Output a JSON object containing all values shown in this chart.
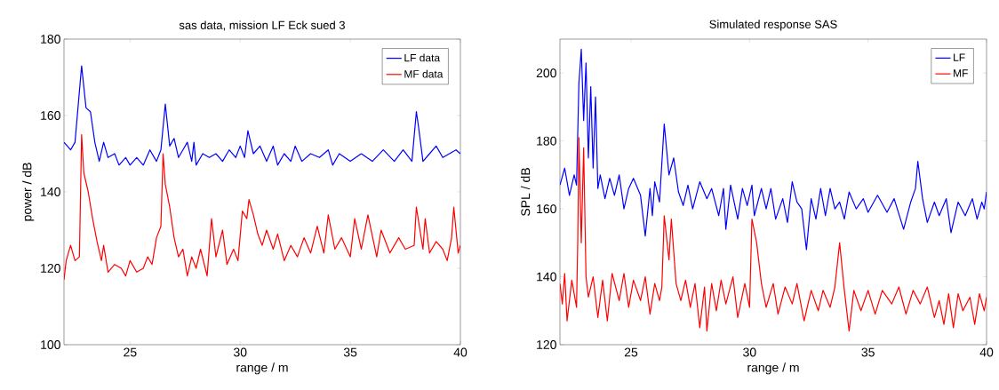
{
  "chart_data": [
    {
      "type": "line",
      "title": "sas data, mission LF Eck sued 3",
      "xlabel": "range / m",
      "ylabel": "power / dB",
      "xlim": [
        22,
        40
      ],
      "ylim": [
        100,
        180
      ],
      "xticks": [
        25,
        30,
        35,
        40
      ],
      "yticks": [
        100,
        120,
        140,
        160,
        180
      ],
      "legend": "top right",
      "series": [
        {
          "name": "LF data",
          "color": "#0000ff",
          "x": [
            22.0,
            22.3,
            22.5,
            22.8,
            23.0,
            23.2,
            23.4,
            23.6,
            23.8,
            24.0,
            24.3,
            24.5,
            24.8,
            25.0,
            25.3,
            25.6,
            25.9,
            26.2,
            26.4,
            26.6,
            26.8,
            27.0,
            27.2,
            27.4,
            27.6,
            27.8,
            27.9,
            28.0,
            28.3,
            28.6,
            28.9,
            29.2,
            29.5,
            29.8,
            30.0,
            30.2,
            30.35,
            30.6,
            30.9,
            31.2,
            31.5,
            31.7,
            32.0,
            32.3,
            32.5,
            32.8,
            33.2,
            33.6,
            34.0,
            34.2,
            34.5,
            35.0,
            35.5,
            36.0,
            36.5,
            37.0,
            37.4,
            37.8,
            38.0,
            38.1,
            38.3,
            38.6,
            38.9,
            39.2,
            39.5,
            39.8,
            40.0
          ],
          "values": [
            153,
            151,
            153,
            173,
            162,
            161,
            153,
            148,
            153,
            149,
            150,
            147,
            149,
            147,
            149,
            147,
            151,
            148,
            151,
            163,
            152,
            154,
            149,
            151,
            153,
            148,
            153,
            147,
            150,
            149,
            150,
            148,
            151,
            149,
            152,
            149,
            156,
            150,
            152,
            148,
            152,
            147,
            150,
            148,
            152,
            148,
            150,
            149,
            151,
            147,
            150,
            148,
            150,
            148,
            151,
            148,
            151,
            148,
            161,
            157,
            148,
            150,
            152,
            149,
            150,
            151,
            150
          ]
        },
        {
          "name": "MF data",
          "color": "#ff0000",
          "x": [
            22.0,
            22.1,
            22.3,
            22.5,
            22.7,
            22.8,
            22.9,
            23.1,
            23.3,
            23.5,
            23.7,
            23.8,
            24.0,
            24.3,
            24.6,
            24.8,
            25.0,
            25.3,
            25.6,
            25.8,
            26.0,
            26.2,
            26.4,
            26.5,
            26.6,
            26.8,
            27.0,
            27.2,
            27.4,
            27.6,
            27.8,
            28.0,
            28.2,
            28.5,
            28.7,
            28.9,
            29.2,
            29.4,
            29.7,
            29.9,
            30.1,
            30.3,
            30.4,
            30.6,
            30.8,
            31.0,
            31.2,
            31.5,
            31.7,
            32.0,
            32.3,
            32.6,
            32.9,
            33.2,
            33.5,
            33.8,
            34.0,
            34.3,
            34.6,
            35.0,
            35.2,
            35.5,
            35.8,
            36.2,
            36.4,
            36.8,
            37.2,
            37.5,
            37.9,
            38.0,
            38.3,
            38.4,
            38.6,
            38.9,
            39.2,
            39.4,
            39.6,
            39.7,
            39.9,
            40.0
          ],
          "values": [
            117,
            122,
            126,
            122,
            123,
            155,
            145,
            140,
            133,
            127,
            122,
            126,
            119,
            121,
            120,
            118,
            122,
            119,
            120,
            123,
            121,
            128,
            131,
            150,
            142,
            136,
            128,
            123,
            125,
            118,
            123,
            120,
            125,
            118,
            133,
            123,
            130,
            121,
            125,
            122,
            135,
            133,
            138,
            134,
            129,
            126,
            130,
            125,
            129,
            122,
            126,
            123,
            128,
            124,
            131,
            124,
            134,
            125,
            128,
            123,
            133,
            125,
            134,
            123,
            130,
            124,
            128,
            125,
            126,
            136,
            125,
            133,
            124,
            127,
            125,
            122,
            128,
            136,
            124,
            126
          ]
        }
      ]
    },
    {
      "type": "line",
      "title": "Simulated response SAS",
      "xlabel": "range / m",
      "ylabel": "SPL / dB",
      "xlim": [
        22,
        40
      ],
      "ylim": [
        120,
        210
      ],
      "xticks": [
        25,
        30,
        35,
        40
      ],
      "yticks": [
        120,
        140,
        160,
        180,
        200
      ],
      "legend": "top right",
      "series": [
        {
          "name": "LF",
          "color": "#0000ff",
          "x": [
            22.0,
            22.2,
            22.4,
            22.6,
            22.7,
            22.8,
            22.9,
            23.0,
            23.1,
            23.2,
            23.3,
            23.4,
            23.5,
            23.6,
            23.7,
            23.9,
            24.1,
            24.3,
            24.5,
            24.7,
            24.9,
            25.1,
            25.4,
            25.6,
            25.8,
            25.9,
            26.0,
            26.2,
            26.4,
            26.6,
            26.8,
            27.0,
            27.2,
            27.4,
            27.6,
            27.9,
            28.2,
            28.4,
            28.7,
            28.9,
            29.0,
            29.2,
            29.5,
            29.7,
            29.9,
            30.1,
            30.2,
            30.5,
            30.7,
            30.9,
            31.1,
            31.4,
            31.6,
            31.8,
            32.0,
            32.2,
            32.4,
            32.6,
            32.8,
            33.0,
            33.2,
            33.4,
            33.6,
            33.8,
            34.0,
            34.2,
            34.5,
            34.8,
            35.0,
            35.4,
            35.8,
            36.1,
            36.5,
            36.8,
            37.0,
            37.1,
            37.3,
            37.5,
            37.8,
            38.0,
            38.3,
            38.5,
            38.8,
            39.1,
            39.4,
            39.6,
            39.8,
            39.9,
            40.0
          ],
          "values": [
            167,
            172,
            164,
            170,
            167,
            197,
            207,
            186,
            203,
            175,
            196,
            172,
            193,
            166,
            170,
            163,
            169,
            164,
            170,
            160,
            166,
            169,
            164,
            152,
            166,
            158,
            168,
            162,
            185,
            170,
            175,
            165,
            161,
            167,
            160,
            168,
            163,
            166,
            158,
            166,
            154,
            167,
            157,
            166,
            161,
            167,
            158,
            166,
            160,
            166,
            157,
            163,
            156,
            168,
            162,
            160,
            148,
            163,
            157,
            166,
            158,
            166,
            160,
            162,
            157,
            165,
            160,
            163,
            159,
            164,
            159,
            163,
            154,
            162,
            166,
            174,
            163,
            156,
            162,
            158,
            163,
            153,
            162,
            158,
            163,
            157,
            162,
            160,
            165
          ]
        },
        {
          "name": "MF",
          "color": "#ff0000",
          "x": [
            22.0,
            22.1,
            22.2,
            22.3,
            22.5,
            22.7,
            22.75,
            22.8,
            22.9,
            23.0,
            23.1,
            23.2,
            23.4,
            23.6,
            23.8,
            24.0,
            24.2,
            24.5,
            24.7,
            24.9,
            25.1,
            25.4,
            25.6,
            25.8,
            26.0,
            26.2,
            26.3,
            26.4,
            26.6,
            26.7,
            26.9,
            27.1,
            27.3,
            27.5,
            27.7,
            27.9,
            28.1,
            28.2,
            28.4,
            28.6,
            28.8,
            29.0,
            29.3,
            29.5,
            29.8,
            30.0,
            30.1,
            30.3,
            30.5,
            30.7,
            31.0,
            31.2,
            31.5,
            31.8,
            32.0,
            32.3,
            32.6,
            32.9,
            33.1,
            33.4,
            33.6,
            33.8,
            34.0,
            34.2,
            34.4,
            34.7,
            35.0,
            35.3,
            35.6,
            36.0,
            36.3,
            36.6,
            36.9,
            37.2,
            37.5,
            37.8,
            38.0,
            38.2,
            38.4,
            38.6,
            38.8,
            39.0,
            39.3,
            39.5,
            39.7,
            39.9,
            40.0
          ],
          "values": [
            138,
            132,
            141,
            127,
            139,
            131,
            150,
            181,
            150,
            178,
            140,
            134,
            140,
            128,
            139,
            127,
            141,
            133,
            141,
            131,
            139,
            133,
            140,
            129,
            138,
            133,
            137,
            158,
            145,
            157,
            138,
            133,
            139,
            131,
            138,
            125,
            137,
            124,
            138,
            130,
            139,
            132,
            140,
            128,
            138,
            131,
            157,
            150,
            138,
            131,
            138,
            129,
            137,
            132,
            138,
            127,
            136,
            130,
            136,
            131,
            137,
            150,
            136,
            124,
            136,
            130,
            136,
            129,
            136,
            132,
            137,
            129,
            136,
            132,
            137,
            128,
            133,
            126,
            135,
            125,
            135,
            130,
            134,
            126,
            135,
            130,
            134
          ]
        }
      ]
    }
  ]
}
